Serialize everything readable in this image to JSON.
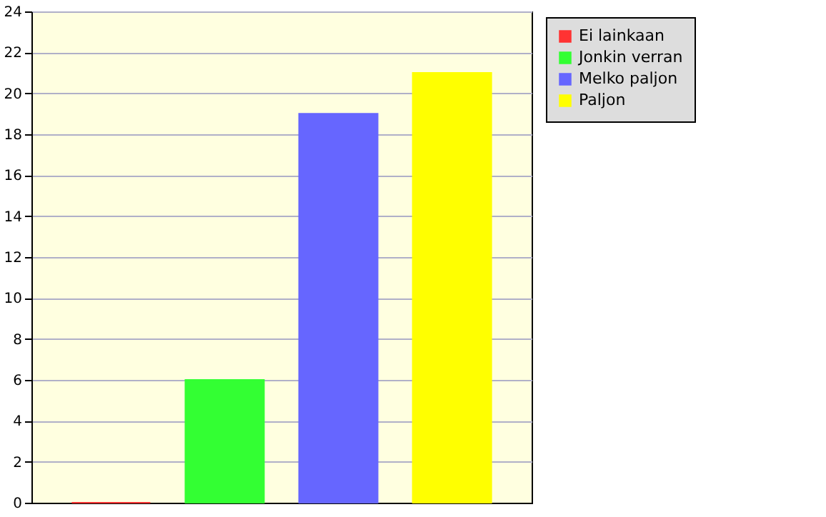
{
  "chart_data": {
    "type": "bar",
    "categories": [
      null,
      null,
      null,
      null
    ],
    "series": [
      {
        "name": "Ei lainkaan",
        "color": "#ff3333",
        "values": [
          0,
          null,
          null,
          null
        ]
      },
      {
        "name": "Jonkin verran",
        "color": "#33ff33",
        "values": [
          null,
          6,
          null,
          null
        ]
      },
      {
        "name": "Melko paljon",
        "color": "#6666ff",
        "values": [
          null,
          null,
          19,
          null
        ]
      },
      {
        "name": "Paljon",
        "color": "#ffff00",
        "values": [
          null,
          null,
          null,
          21
        ]
      }
    ],
    "ylim": [
      0,
      24
    ],
    "yticks": [
      0,
      2,
      4,
      6,
      8,
      10,
      12,
      14,
      16,
      18,
      20,
      22,
      24
    ],
    "grid": "y",
    "legend": "top right",
    "tick_labels": "y"
  }
}
